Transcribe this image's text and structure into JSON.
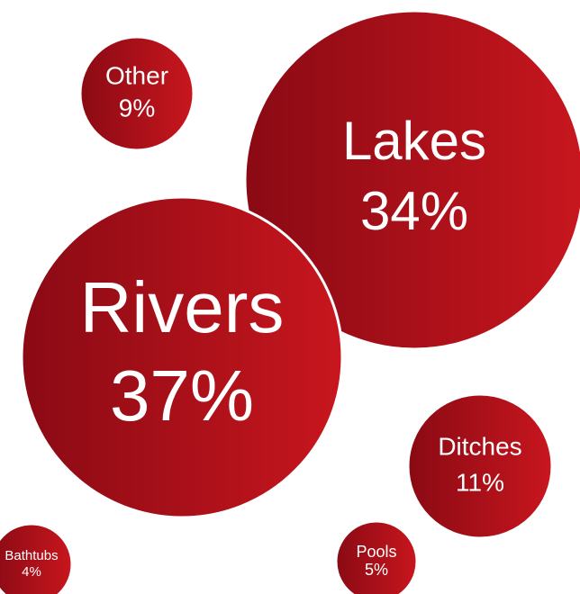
{
  "chart_data": {
    "type": "bubble",
    "title": "",
    "unit": "%",
    "colors": {
      "gradient_start": "#8a0a14",
      "gradient_end": "#c8161e",
      "outline": "#ffffff",
      "label": "#ffffff"
    },
    "items": [
      {
        "label": "Rivers",
        "value": 37,
        "value_text": "37%"
      },
      {
        "label": "Lakes",
        "value": 34,
        "value_text": "34%"
      },
      {
        "label": "Ditches",
        "value": 11,
        "value_text": "11%"
      },
      {
        "label": "Other",
        "value": 9,
        "value_text": "9%"
      },
      {
        "label": "Pools",
        "value": 5,
        "value_text": "5%"
      },
      {
        "label": "Bathtubs",
        "value": 4,
        "value_text": "4%"
      }
    ]
  }
}
